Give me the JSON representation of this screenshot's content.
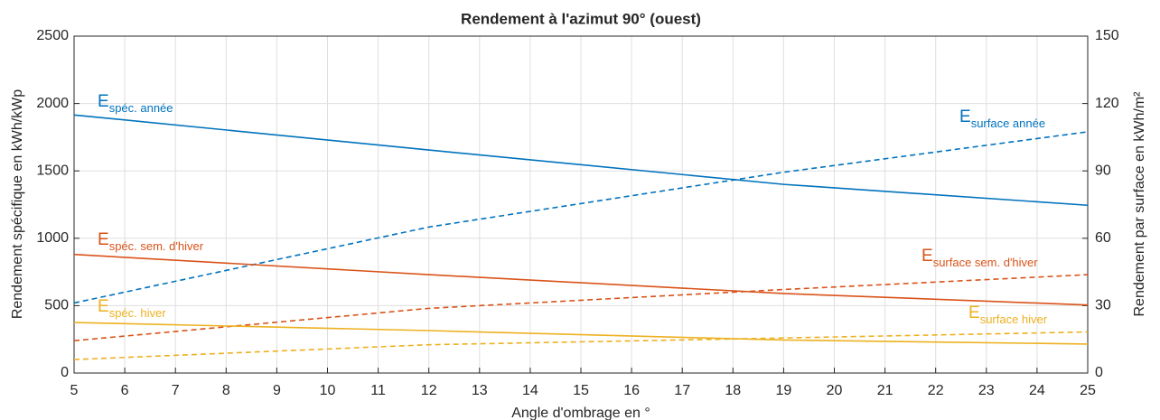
{
  "chart_data": {
    "type": "line",
    "title": "Rendement à l'azimut 90° (ouest)",
    "xlabel": "Angle d'ombrage en °",
    "ylabel": "Rendement spécifique en kWh/kWp",
    "y2label": "Rendement par surface en kWh/m²",
    "x": [
      5,
      12,
      19,
      25
    ],
    "xlim": [
      5,
      25
    ],
    "xticks": [
      5,
      6,
      7,
      8,
      9,
      10,
      11,
      12,
      13,
      14,
      15,
      16,
      17,
      18,
      19,
      20,
      21,
      22,
      23,
      24,
      25
    ],
    "ylim": [
      0,
      2500
    ],
    "yticks": [
      0,
      500,
      1000,
      1500,
      2000,
      2500
    ],
    "y2lim": [
      0,
      150
    ],
    "y2ticks": [
      0,
      30,
      60,
      90,
      120,
      150
    ],
    "grid": true,
    "series": [
      {
        "name": "E",
        "subscript": "spéc. année",
        "color": "#0072bd",
        "dashed": false,
        "values": [
          1915,
          1655,
          1400,
          1245
        ]
      },
      {
        "name": "E",
        "subscript": "surface année",
        "color": "#0072bd",
        "dashed": true,
        "axis": "y2",
        "values": [
          31.2,
          65,
          89.4,
          107.4
        ]
      },
      {
        "name": "E",
        "subscript": "spéc. sem. d'hiver",
        "color": "#d95319",
        "dashed": false,
        "values": [
          880,
          730,
          590,
          505
        ]
      },
      {
        "name": "E",
        "subscript": "surface sem. d'hiver",
        "color": "#d95319",
        "dashed": true,
        "axis": "y2",
        "values": [
          14.4,
          28.8,
          37.2,
          43.8
        ]
      },
      {
        "name": "E",
        "subscript": "spéc. hiver",
        "color": "#edb120",
        "dashed": false,
        "values": [
          375,
          315,
          245,
          215
        ]
      },
      {
        "name": "E",
        "subscript": "surface hiver",
        "color": "#edb120",
        "dashed": true,
        "axis": "y2",
        "values": [
          6,
          12.6,
          15.6,
          18.3
        ]
      }
    ]
  }
}
